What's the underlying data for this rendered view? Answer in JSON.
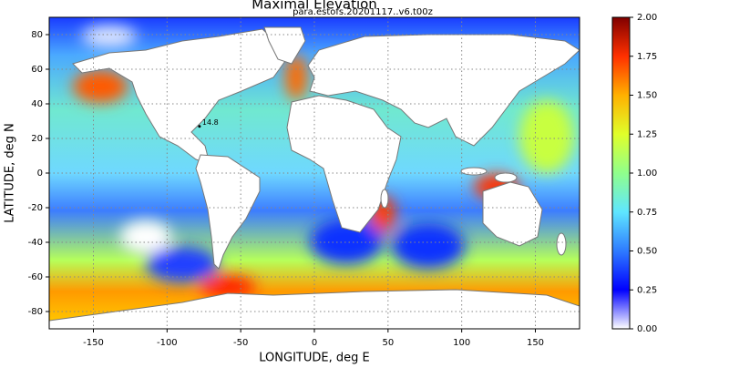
{
  "chart_data": {
    "type": "map",
    "title": "Maximal Elevation",
    "subtitle": "para.estofs.20201117..v6.t00z",
    "xlabel": "LONGITUDE, deg E",
    "ylabel": "LATITUDE, deg N",
    "xlim": [
      -180,
      180
    ],
    "ylim": [
      -90,
      90
    ],
    "xticks": [
      -150,
      -100,
      -50,
      0,
      50,
      100,
      150
    ],
    "yticks": [
      -80,
      -60,
      -40,
      -20,
      0,
      20,
      40,
      60,
      80
    ],
    "grid": true,
    "annotation": {
      "text": "14.8",
      "lon": -78,
      "lat": 27
    },
    "colorbar": {
      "clim": [
        0,
        2
      ],
      "colormap": [
        "#ffffff",
        "#0000ff",
        "#2e7bff",
        "#5fe6ff",
        "#90ff8c",
        "#e0ff2a",
        "#ffb000",
        "#ff3000",
        "#800000"
      ],
      "ticks": [
        {
          "value": 0,
          "label": "0.00"
        },
        {
          "value": 0.25,
          "label": "0.25"
        },
        {
          "value": 0.5,
          "label": "0.50"
        },
        {
          "value": 0.75,
          "label": "0.75"
        },
        {
          "value": 1,
          "label": "1.00"
        },
        {
          "value": 1.25,
          "label": "1.25"
        },
        {
          "value": 1.5,
          "label": "1.50"
        },
        {
          "value": 1.75,
          "label": "1.75"
        },
        {
          "value": 2,
          "label": "2.00"
        }
      ]
    }
  }
}
